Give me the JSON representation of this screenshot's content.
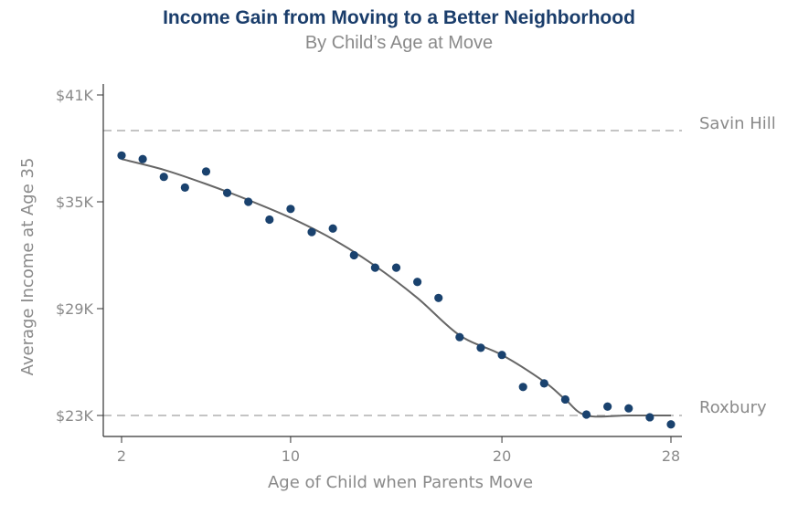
{
  "chart_data": {
    "type": "scatter",
    "title": "Income Gain from Moving to a Better Neighborhood",
    "subtitle": "By Child’s Age at Move",
    "xlabel": "Age of Child when Parents Move",
    "ylabel": "Average Income at Age 35",
    "xlim": [
      2,
      28
    ],
    "ylim": [
      23,
      41
    ],
    "x_ticks": [
      2,
      10,
      20,
      28
    ],
    "x_tick_labels": [
      "2",
      "10",
      "20",
      "28"
    ],
    "y_ticks": [
      23,
      29,
      35,
      41
    ],
    "y_tick_labels": [
      "$23K",
      "$29K",
      "$35K",
      "$41K"
    ],
    "grid": false,
    "points": {
      "x": [
        2,
        3,
        4,
        5,
        6,
        7,
        8,
        9,
        10,
        11,
        12,
        13,
        14,
        15,
        16,
        17,
        18,
        19,
        20,
        21,
        22,
        23,
        24,
        25,
        26,
        27,
        28
      ],
      "y": [
        37.6,
        37.4,
        36.4,
        35.8,
        36.7,
        35.5,
        35.0,
        34.0,
        34.6,
        33.3,
        33.5,
        32.0,
        31.3,
        31.3,
        30.5,
        29.6,
        27.4,
        26.8,
        26.4,
        24.6,
        24.8,
        23.9,
        23.05,
        23.5,
        23.4,
        22.9,
        22.5
      ]
    },
    "fit_line": {
      "x": [
        2,
        4,
        6,
        8,
        10,
        12,
        14,
        16,
        18,
        20,
        22,
        23,
        24,
        26,
        28
      ],
      "y": [
        37.4,
        36.8,
        36.0,
        35.1,
        34.1,
        32.9,
        31.4,
        29.6,
        27.5,
        26.4,
        24.9,
        23.9,
        23.0,
        23.0,
        23.0
      ]
    },
    "reference_lines": [
      {
        "label": "Savin Hill",
        "y": 39.0
      },
      {
        "label": "Roxbury",
        "y": 23.0
      }
    ],
    "colors": {
      "points": "#1a426e",
      "fit_line": "#666666",
      "reference": "#a0a0a0",
      "title": "#1a3d6b"
    }
  }
}
